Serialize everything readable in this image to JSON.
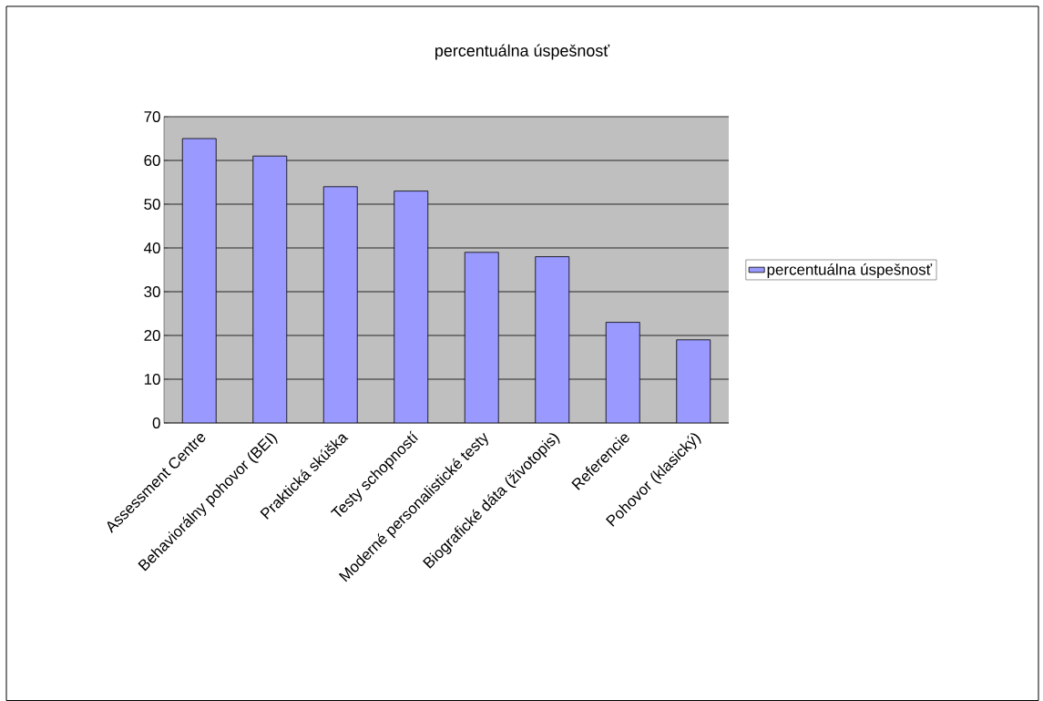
{
  "chart_data": {
    "type": "bar",
    "title": "percentuálna úspešnosť",
    "categories": [
      "Assessment Centre",
      "Behaviorálny pohovor (BEI)",
      "Praktická skúška",
      "Testy schopností",
      "Moderné personalistické testy",
      "Biografické dáta (životopis)",
      "Referencie",
      "Pohovor (klasický)"
    ],
    "series": [
      {
        "name": "percentuálna úspešnosť",
        "color": "#9999ff",
        "values": [
          65,
          61,
          54,
          53,
          39,
          38,
          23,
          19
        ]
      }
    ],
    "ylim": [
      0,
      70
    ],
    "yticks": [
      0,
      10,
      20,
      30,
      40,
      50,
      60,
      70
    ],
    "grid": "y",
    "legend": "right"
  }
}
